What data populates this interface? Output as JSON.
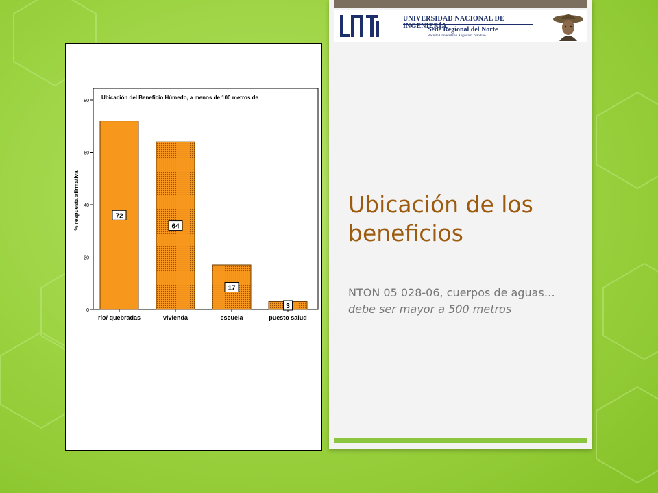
{
  "slide": {
    "title": "Ubicación de los beneficios",
    "body_plain": "NTON 05 028-06, cuerpos de aguas…",
    "body_italic": "debe ser mayor a 500 metros"
  },
  "header": {
    "institution": "UNIVERSIDAD NACIONAL DE INGENIERÍA",
    "sede": "Sede Regional del Norte",
    "recinto": "Recinto Universitario Augusto C. Sandino"
  },
  "colors": {
    "background": "#9ad23f",
    "title": "#9c5b0e",
    "body": "#777777",
    "bar_fill": "#f7981d",
    "bar_stroke": "#6b3a00",
    "accent_bar": "#8cc63f",
    "header_navy": "#1c2f6b"
  },
  "chart_data": {
    "type": "bar",
    "title": "Ubicación del Beneficio Húmedo, a menos de 100 metros de",
    "xlabel": "",
    "ylabel": "% respuesta afirmativa",
    "categories": [
      "río/ quebradas",
      "vivienda",
      "escuela",
      "puesto salud"
    ],
    "values": [
      72,
      64,
      17,
      3
    ],
    "data_labels": [
      "72",
      "64",
      "17",
      "3"
    ],
    "ylim": [
      0,
      80
    ],
    "yticks": [
      0,
      20,
      40,
      60,
      80
    ],
    "patterned": [
      false,
      true,
      true,
      true
    ],
    "grid": false,
    "legend": "none"
  }
}
